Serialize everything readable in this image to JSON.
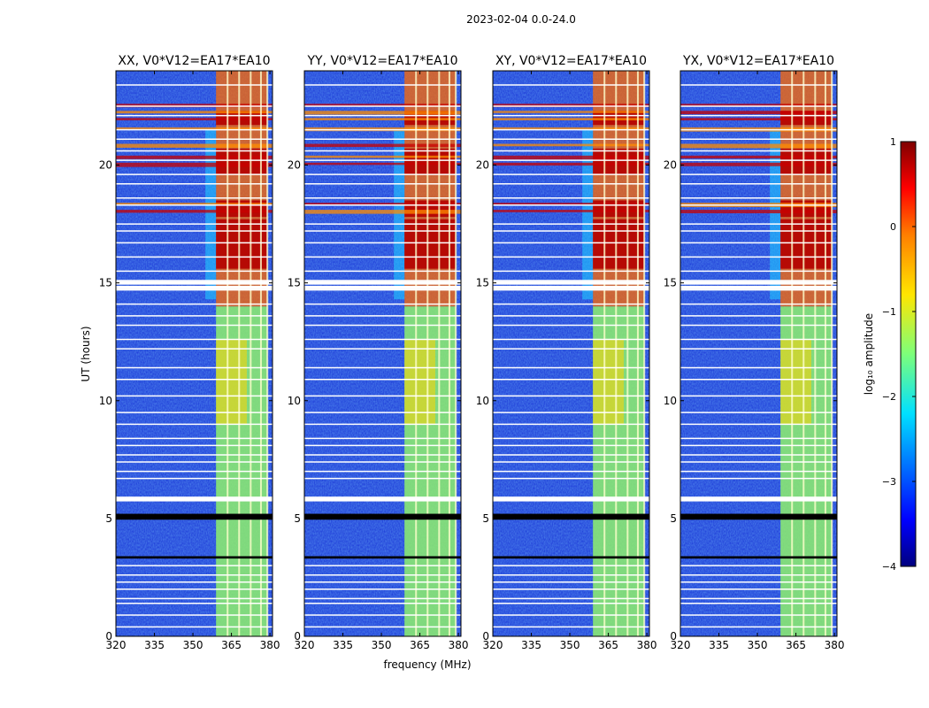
{
  "figure": {
    "suptitle": "2023-02-04 0.0-24.0",
    "xlabel": "frequency (MHz)",
    "ylabel": "UT (hours)"
  },
  "chart_data": {
    "type": "heatmap",
    "title": "2023-02-04 0.0-24.0",
    "xlabel": "frequency (MHz)",
    "ylabel": "UT (hours)",
    "xlim": [
      320,
      381
    ],
    "ylim": [
      0,
      24
    ],
    "xticks": [
      320,
      335,
      350,
      365,
      380
    ],
    "yticks": [
      0,
      5,
      10,
      15,
      20
    ],
    "colormap": "jet",
    "panels": [
      {
        "title": "XX, V0*V12=EA17*EA10",
        "id": "xx"
      },
      {
        "title": "YY, V0*V12=EA17*EA10",
        "id": "yy"
      },
      {
        "title": "XY, V0*V12=EA17*EA10",
        "id": "xy"
      },
      {
        "title": "YX, V0*V12=EA17*EA10",
        "id": "yx"
      }
    ],
    "strong_band_mhz": [
      359,
      379
    ],
    "band_lines_mhz": [
      363.5,
      368,
      372.5,
      376.5,
      379
    ],
    "flagged_hours": [
      0.4,
      0.9,
      1.4,
      1.6,
      2.0,
      2.3,
      2.6,
      3.0,
      5.9,
      6.7,
      7.0,
      7.4,
      7.7,
      8.1,
      8.4,
      9.0,
      9.5,
      10.2,
      10.9,
      11.4,
      12.2,
      12.6,
      13.2,
      13.6,
      14.1,
      14.7,
      15.1,
      15.5,
      16.1,
      16.7,
      17.2,
      17.5,
      18.3,
      18.6,
      19.2,
      19.6,
      20.2,
      20.6,
      21.1,
      21.5,
      22.1,
      22.5,
      23.4
    ],
    "blank_hours": [
      5.8,
      15.0,
      14.8
    ],
    "dark_bands_hours": [
      [
        3.3,
        3.4
      ],
      [
        4.95,
        5.2
      ]
    ],
    "rfi_strong_periods_hours": [
      [
        15.6,
        17.7
      ],
      [
        17.8,
        18.5
      ],
      [
        19.6,
        20.7
      ],
      [
        21.7,
        22.3
      ]
    ],
    "colorbar": {
      "label": "log₁₀ amplitude",
      "min": -4,
      "max": 1,
      "ticks": [
        1,
        0,
        -1,
        -2,
        -3,
        -4
      ]
    }
  },
  "colors": {
    "base": "#1e3cd8",
    "flag": "#ffffff"
  }
}
